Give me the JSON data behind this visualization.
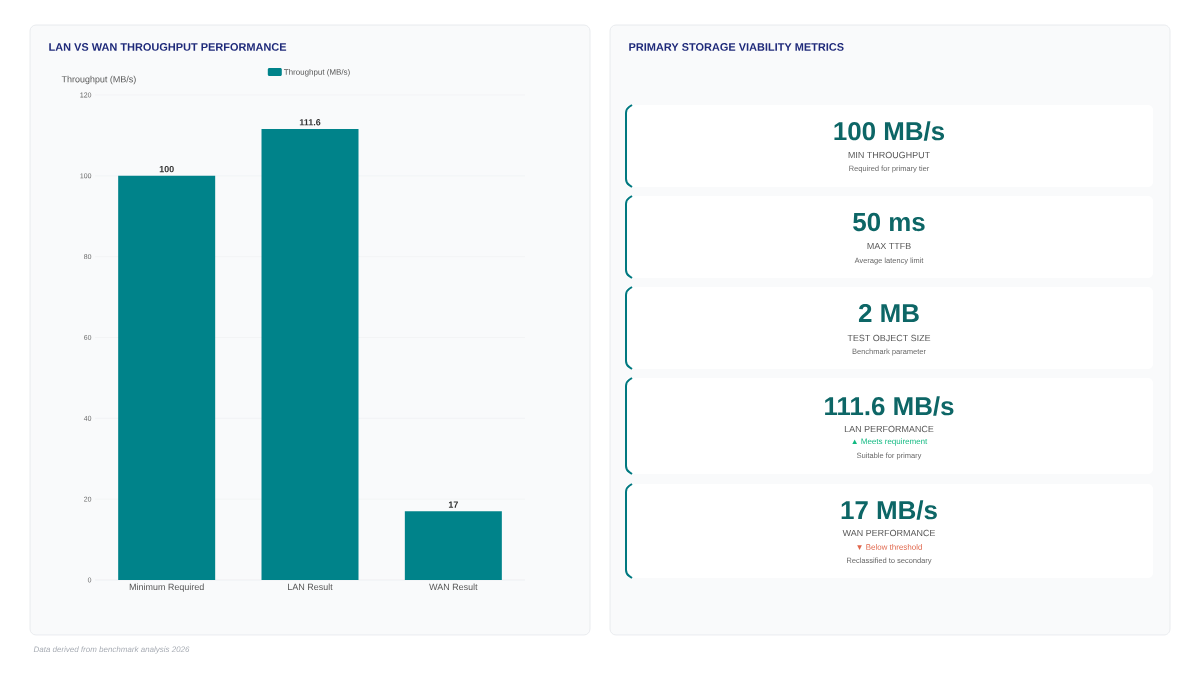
{
  "chart_data": [
    {
      "type": "bar",
      "title": "LAN VS WAN THROUGHPUT PERFORMANCE",
      "ylabel": "Throughput (MB/s)",
      "categories": [
        "Minimum Required",
        "LAN Result",
        "WAN Result"
      ],
      "series": [
        {
          "name": "Throughput (MB/s)",
          "color": "#00838a",
          "values": [
            100,
            111.6,
            17
          ]
        }
      ],
      "ylim": [
        0,
        120
      ],
      "yticks": [
        0,
        20,
        40,
        60,
        80,
        100,
        120
      ],
      "grid": "y",
      "legend": "top",
      "data_labels": true,
      "annotations": [
        "Data derived from benchmark analysis 2026"
      ]
    },
    {
      "type": "other",
      "title": "PRIMARY STORAGE VIABILITY METRICS",
      "annotations": [
        "100 MB/s",
        "MIN THROUGHPUT",
        "Required for primary tier",
        "50 ms",
        "MAX TTFB",
        "Average latency limit",
        "2 MB",
        "TEST OBJECT SIZE",
        "Benchmark parameter",
        "111.6 MB/s",
        "LAN PERFORMANCE",
        "▲ Meets requirement",
        "Suitable for primary",
        "17 MB/s",
        "WAN PERFORMANCE",
        "▼ Below threshold",
        "Reclassified to secondary"
      ]
    }
  ]
}
